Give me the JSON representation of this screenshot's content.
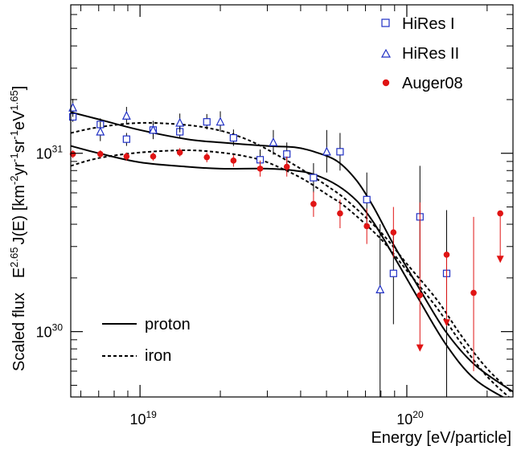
{
  "chart_data": {
    "type": "scatter",
    "xlabel": "Energy [eV/particle]",
    "ylabel_prefix": "Scaled flux",
    "ylabel_main": "E",
    "ylabel_sup1": "2.65",
    "ylabel_mid": "J(E) [km",
    "ylabel_sup2": "-2",
    "ylabel_u1": "yr",
    "ylabel_sup3": "-1",
    "ylabel_u2": "sr",
    "ylabel_sup4": "-1",
    "ylabel_u3": "eV",
    "ylabel_sup5": "1.65",
    "ylabel_end": "]",
    "x_scale": "log",
    "y_scale": "log",
    "xlim": [
      5.5e+18,
      2.5e+20
    ],
    "ylim": [
      4.3e+29,
      6.8e+31
    ],
    "xticks": [
      {
        "value": 1e+19,
        "base": "10",
        "exp": "19"
      },
      {
        "value": 1e+20,
        "base": "10",
        "exp": "20"
      }
    ],
    "yticks": [
      {
        "value": 1e+30,
        "base": "10",
        "exp": "30"
      },
      {
        "value": 1e+31,
        "base": "10",
        "exp": "31"
      }
    ],
    "legend": {
      "placement": "top-right",
      "entries": [
        {
          "label": "HiRes I",
          "marker": "open-square",
          "color": "#1f2fc4"
        },
        {
          "label": "HiRes II",
          "marker": "open-triangle",
          "color": "#1f2fc4"
        },
        {
          "label": "Auger08",
          "marker": "filled-circle",
          "color": "#e01414"
        }
      ]
    },
    "legend2": {
      "placement": "bottom-left",
      "entries": [
        {
          "label": "proton",
          "line": "solid"
        },
        {
          "label": "iron",
          "line": "dashed"
        }
      ]
    },
    "series": [
      {
        "name": "HiRes I",
        "marker": "open-square",
        "color": "#1f2fc4",
        "points": [
          {
            "x": 5.6e+18,
            "y": 1.6e+31,
            "lo": 1.5e+31,
            "hi": 1.72e+31
          },
          {
            "x": 7.1e+18,
            "y": 1.45e+31,
            "lo": 1.33e+31,
            "hi": 1.57e+31
          },
          {
            "x": 8.9e+18,
            "y": 1.2e+31,
            "lo": 1.1e+31,
            "hi": 1.3e+31
          },
          {
            "x": 1.12e+19,
            "y": 1.35e+31,
            "lo": 1.24e+31,
            "hi": 1.46e+31
          },
          {
            "x": 1.41e+19,
            "y": 1.32e+31,
            "lo": 1.21e+31,
            "hi": 1.44e+31
          },
          {
            "x": 1.78e+19,
            "y": 1.5e+31,
            "lo": 1.36e+31,
            "hi": 1.66e+31
          },
          {
            "x": 2.24e+19,
            "y": 1.22e+31,
            "lo": 1.1e+31,
            "hi": 1.36e+31
          },
          {
            "x": 2.82e+19,
            "y": 9.2e+30,
            "lo": 8.1e+30,
            "hi": 1.05e+31
          },
          {
            "x": 3.55e+19,
            "y": 9.9e+30,
            "lo": 8.5e+30,
            "hi": 1.15e+31
          },
          {
            "x": 4.47e+19,
            "y": 7.3e+30,
            "lo": 6e+30,
            "hi": 8.8e+30
          },
          {
            "x": 5.62e+19,
            "y": 1.02e+31,
            "lo": 8e+30,
            "hi": 1.3e+31
          },
          {
            "x": 7.08e+19,
            "y": 5.5e+30,
            "lo": 3.8e+30,
            "hi": 7.8e+30
          },
          {
            "x": 8.91e+19,
            "y": 2.12e+30,
            "lo": 1.1e+30,
            "hi": 3.7e+30
          },
          {
            "x": 1.12e+20,
            "y": 4.4e+30,
            "lo": 2e+30,
            "hi": 8.5e+30
          },
          {
            "x": 1.41e+20,
            "y": 2.12e+30,
            "lo": 4.3e+29,
            "hi": 4.8e+30
          }
        ]
      },
      {
        "name": "HiRes II",
        "marker": "open-triangle",
        "color": "#1f2fc4",
        "points": [
          {
            "x": 5.6e+18,
            "y": 1.8e+31,
            "lo": 1.6e+31,
            "hi": 2.02e+31
          },
          {
            "x": 7.1e+18,
            "y": 1.32e+31,
            "lo": 1.17e+31,
            "hi": 1.5e+31
          },
          {
            "x": 8.9e+18,
            "y": 1.62e+31,
            "lo": 1.45e+31,
            "hi": 1.82e+31
          },
          {
            "x": 1.12e+19,
            "y": 1.35e+31,
            "lo": 1.2e+31,
            "hi": 1.52e+31
          },
          {
            "x": 1.41e+19,
            "y": 1.48e+31,
            "lo": 1.31e+31,
            "hi": 1.67e+31
          },
          {
            "x": 2e+19,
            "y": 1.5e+31,
            "lo": 1.32e+31,
            "hi": 1.72e+31
          },
          {
            "x": 3.16e+19,
            "y": 1.15e+31,
            "lo": 9.8e+30,
            "hi": 1.35e+31
          },
          {
            "x": 5.01e+19,
            "y": 1.02e+31,
            "lo": 7.8e+30,
            "hi": 1.35e+31
          },
          {
            "x": 7.94e+19,
            "y": 1.72e+30,
            "lo": 4.3e+29,
            "hi": 4e+30
          }
        ]
      },
      {
        "name": "Auger08",
        "marker": "filled-circle",
        "color": "#e01414",
        "points": [
          {
            "x": 5.6e+18,
            "y": 9.9e+30,
            "lo": 9.4e+30,
            "hi": 1.04e+31
          },
          {
            "x": 7.1e+18,
            "y": 9.9e+30,
            "lo": 9.4e+30,
            "hi": 1.04e+31
          },
          {
            "x": 8.9e+18,
            "y": 9.6e+30,
            "lo": 9.1e+30,
            "hi": 1.01e+31
          },
          {
            "x": 1.12e+19,
            "y": 9.6e+30,
            "lo": 9.1e+30,
            "hi": 1.01e+31
          },
          {
            "x": 1.41e+19,
            "y": 1.01e+31,
            "lo": 9.6e+30,
            "hi": 1.07e+31
          },
          {
            "x": 1.78e+19,
            "y": 9.5e+30,
            "lo": 8.9e+30,
            "hi": 1.01e+31
          },
          {
            "x": 2.24e+19,
            "y": 9.1e+30,
            "lo": 8.4e+30,
            "hi": 9.8e+30
          },
          {
            "x": 2.82e+19,
            "y": 8.2e+30,
            "lo": 7.4e+30,
            "hi": 9.1e+30
          },
          {
            "x": 3.55e+19,
            "y": 8.4e+30,
            "lo": 7.4e+30,
            "hi": 9.6e+30
          },
          {
            "x": 4.47e+19,
            "y": 5.2e+30,
            "lo": 4.4e+30,
            "hi": 6.1e+30
          },
          {
            "x": 5.62e+19,
            "y": 4.6e+30,
            "lo": 3.8e+30,
            "hi": 5.5e+30
          },
          {
            "x": 7.08e+19,
            "y": 3.9e+30,
            "lo": 3.1e+30,
            "hi": 4.9e+30
          },
          {
            "x": 8.91e+19,
            "y": 3.6e+30,
            "lo": 2.6e+30,
            "hi": 5e+30
          },
          {
            "x": 1.12e+20,
            "y": 1.6e+30,
            "lo": 7.8e+29,
            "hi": 5.3e+30,
            "limit": "upper"
          },
          {
            "x": 1.41e+20,
            "y": 2.7e+30,
            "lo": 1.08e+30,
            "hi": 2.7e+30,
            "limit": "upper"
          },
          {
            "x": 1.78e+20,
            "y": 1.65e+30,
            "lo": 6e+29,
            "hi": 4.4e+30
          },
          {
            "x": 2.24e+20,
            "y": 4.6e+30,
            "lo": 2.45e+30,
            "hi": 4.6e+30,
            "limit": "upper"
          }
        ]
      }
    ],
    "curves": [
      {
        "style": "solid",
        "x": [
          5.5e+18,
          7e+18,
          1e+19,
          1.5e+19,
          2e+19,
          3e+19,
          3.8e+19,
          4.5e+19,
          5.5e+19,
          6.5e+19,
          7.5e+19,
          9e+19,
          1.1e+20,
          1.4e+20,
          1.8e+20,
          2.5e+20
        ],
        "y": [
          1.7e+31,
          1.55e+31,
          1.35e+31,
          1.2e+31,
          1.15e+31,
          1.1e+31,
          1.08e+31,
          1.02e+31,
          9e+30,
          7e+30,
          5e+30,
          3e+30,
          1.8e+30,
          1e+30,
          6.5e+29,
          4.6e+29
        ]
      },
      {
        "style": "solid",
        "x": [
          5.5e+18,
          7e+18,
          1e+19,
          1.5e+19,
          2e+19,
          3e+19,
          3.8e+19,
          4.5e+19,
          5.5e+19,
          6.5e+19,
          7.5e+19,
          9e+19,
          1.1e+20,
          1.4e+20,
          1.8e+20,
          2.5e+20
        ],
        "y": [
          1.1e+31,
          1e+31,
          8.9e+30,
          8.4e+30,
          8.2e+30,
          8.2e+30,
          8e+30,
          7.6e+30,
          6.6e+30,
          5.4e+30,
          4.1e+30,
          2.6e+30,
          1.55e+30,
          8.5e+29,
          5.4e+29,
          4e+29
        ]
      },
      {
        "style": "dashed",
        "x": [
          5.5e+18,
          7e+18,
          1e+19,
          1.5e+19,
          2e+19,
          2.5e+19,
          3e+19,
          4e+19,
          5e+19,
          6e+19,
          8e+19,
          1e+20,
          1.3e+20,
          1.6e+20,
          2e+20,
          2.5e+20
        ],
        "y": [
          1.3e+31,
          1.4e+31,
          1.48e+31,
          1.44e+31,
          1.34e+31,
          1.2e+31,
          1.05e+31,
          8.2e+30,
          6.6e+30,
          5.4e+30,
          3.6e+30,
          2.4e+30,
          1.5e+30,
          9.5e+29,
          6.2e+29,
          4.5e+29
        ]
      },
      {
        "style": "dashed",
        "x": [
          5.5e+18,
          7e+18,
          1e+19,
          1.5e+19,
          2e+19,
          2.5e+19,
          3e+19,
          4e+19,
          5e+19,
          6e+19,
          8e+19,
          1e+20,
          1.3e+20,
          1.6e+20,
          2e+20,
          2.5e+20
        ],
        "y": [
          8.5e+30,
          9.4e+30,
          1.01e+31,
          1.04e+31,
          1.01e+31,
          9.6e+30,
          8.9e+30,
          7.3e+30,
          5.9e+30,
          4.9e+30,
          3.3e+30,
          2.2e+30,
          1.35e+30,
          8.6e+29,
          5.6e+29,
          4.1e+29
        ]
      }
    ]
  }
}
